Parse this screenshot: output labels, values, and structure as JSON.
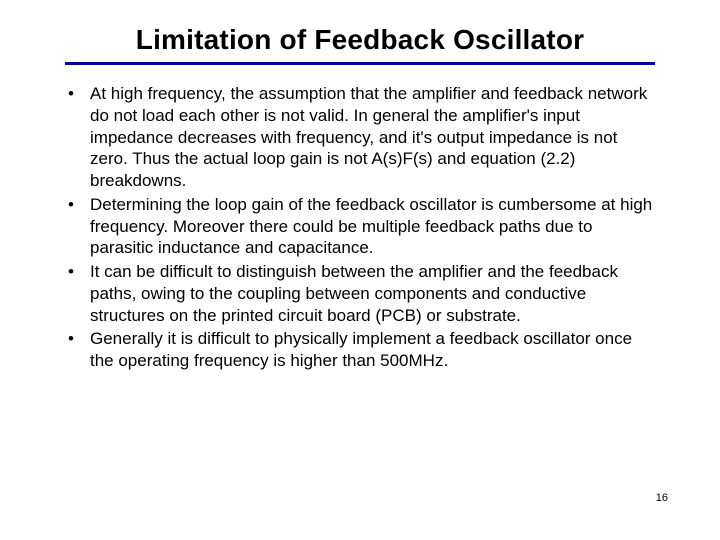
{
  "title": "Limitation of Feedback Oscillator",
  "title_color": "#000000",
  "rule_color": "#000099",
  "background_color": "#ffffff",
  "title_fontsize": 28,
  "body_fontsize": 17,
  "bullets": [
    "At high frequency, the assumption that the amplifier and feedback network do not load each other is not valid.  In general the amplifier's input impedance decreases with frequency, and it's output impedance is not zero.  Thus the actual loop gain is not A(s)F(s) and equation (2.2) breakdowns.",
    "Determining the loop gain of the feedback oscillator is cumbersome at high frequency.  Moreover there could be multiple feedback paths due to parasitic inductance and capacitance.",
    "It can be difficult to distinguish between the amplifier and the feedback paths, owing to the coupling between components and conductive structures on the printed circuit board (PCB) or substrate.",
    "Generally it is difficult to physically implement a feedback oscillator once the operating frequency is higher than 500MHz."
  ],
  "page_number": "16"
}
